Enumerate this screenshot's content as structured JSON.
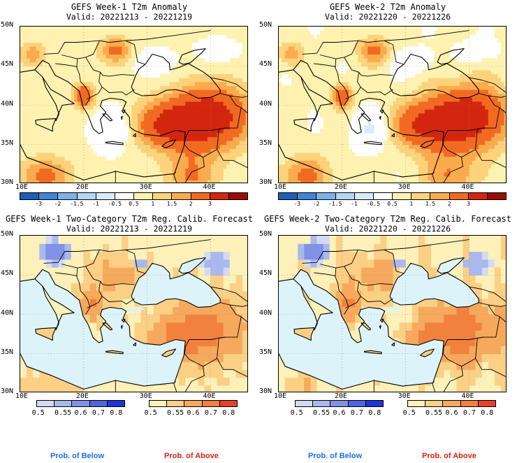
{
  "panels": [
    {
      "title": "GEFS Week-1 T2m Anomaly",
      "valid": "Valid: 20221213 - 20221219"
    },
    {
      "title": "GEFS Week-2 T2m Anomaly",
      "valid": "Valid: 20221220 - 20221226"
    },
    {
      "title": "GEFS Week-1 Two-Category T2m Reg. Calib. Forecast",
      "valid": "Valid: 20221213 - 20221219"
    },
    {
      "title": "GEFS Week-2 Two-Category T2m Reg. Calib. Forecast",
      "valid": "Valid: 20221220 - 20221226"
    }
  ],
  "axes": {
    "lat_labels": [
      "50N",
      "45N",
      "40N",
      "35N",
      "30N"
    ],
    "lon_labels": [
      "10E",
      "20E",
      "30E",
      "40E"
    ]
  },
  "anomaly_colorbar": {
    "labels": [
      "-3",
      "-2",
      "-1.5",
      "-1",
      "-0.5",
      "0.5",
      "1",
      "1.5",
      "2",
      "3"
    ],
    "colors": [
      "#1c5fb5",
      "#3f86d6",
      "#7cb2e8",
      "#b4d6f2",
      "#d8ebf8",
      "#ffffff",
      "#fff2b0",
      "#fdd27a",
      "#fbab4e",
      "#f26a22",
      "#d4260f",
      "#9a0d06"
    ]
  },
  "prob_below_colorbar": {
    "labels": [
      "0.5",
      "0.55",
      "0.6",
      "0.7",
      "0.8"
    ],
    "colors": [
      "#d3dbf4",
      "#a9b8ee",
      "#7f92e6",
      "#4d66e0",
      "#1f34d8"
    ]
  },
  "prob_above_colorbar": {
    "labels": [
      "0.5",
      "0.55",
      "0.6",
      "0.7",
      "0.8"
    ],
    "colors": [
      "#fdf0b8",
      "#fbcf84",
      "#f6a95c",
      "#f2813e",
      "#e8402a"
    ]
  },
  "legend": {
    "below": "Prob. of Below",
    "above": "Prob. of Above",
    "below_color": "#1e6fe6",
    "above_color": "#dd2211"
  }
}
